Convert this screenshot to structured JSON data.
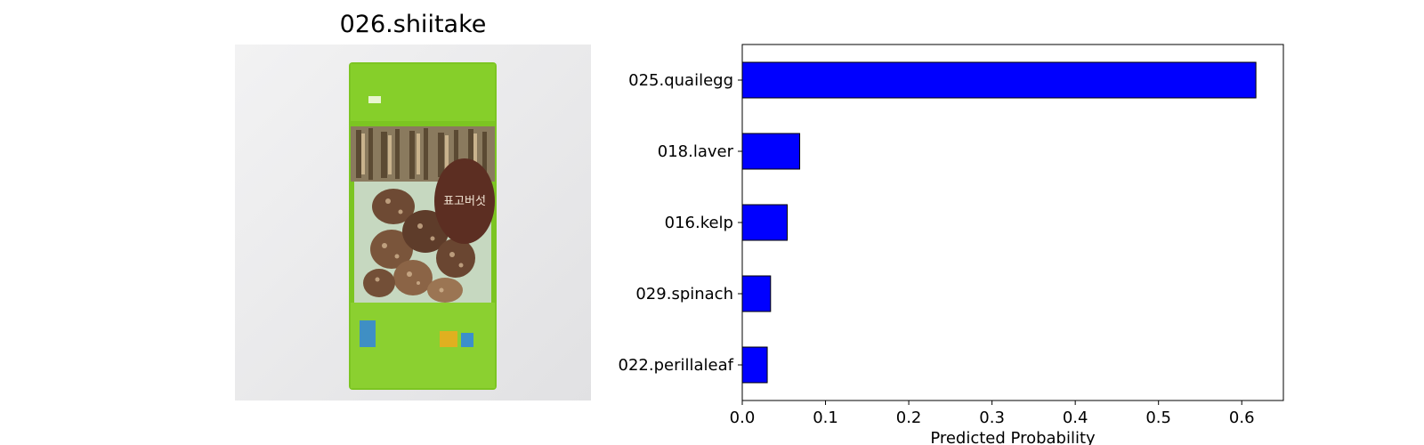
{
  "image_panel": {
    "title": "026.shiitake",
    "product_label": "표고버섯"
  },
  "chart_data": {
    "type": "bar",
    "orientation": "horizontal",
    "categories": [
      "025.quailegg",
      "018.laver",
      "016.kelp",
      "029.spinach",
      "022.perillaleaf"
    ],
    "values": [
      0.617,
      0.069,
      0.054,
      0.034,
      0.03
    ],
    "xlabel": "Predicted Probability",
    "ylabel": "",
    "xlim": [
      0.0,
      0.65
    ],
    "xticks": [
      "0.0",
      "0.1",
      "0.2",
      "0.3",
      "0.4",
      "0.5",
      "0.6"
    ],
    "bar_color": "#0000ff",
    "grid": false
  }
}
